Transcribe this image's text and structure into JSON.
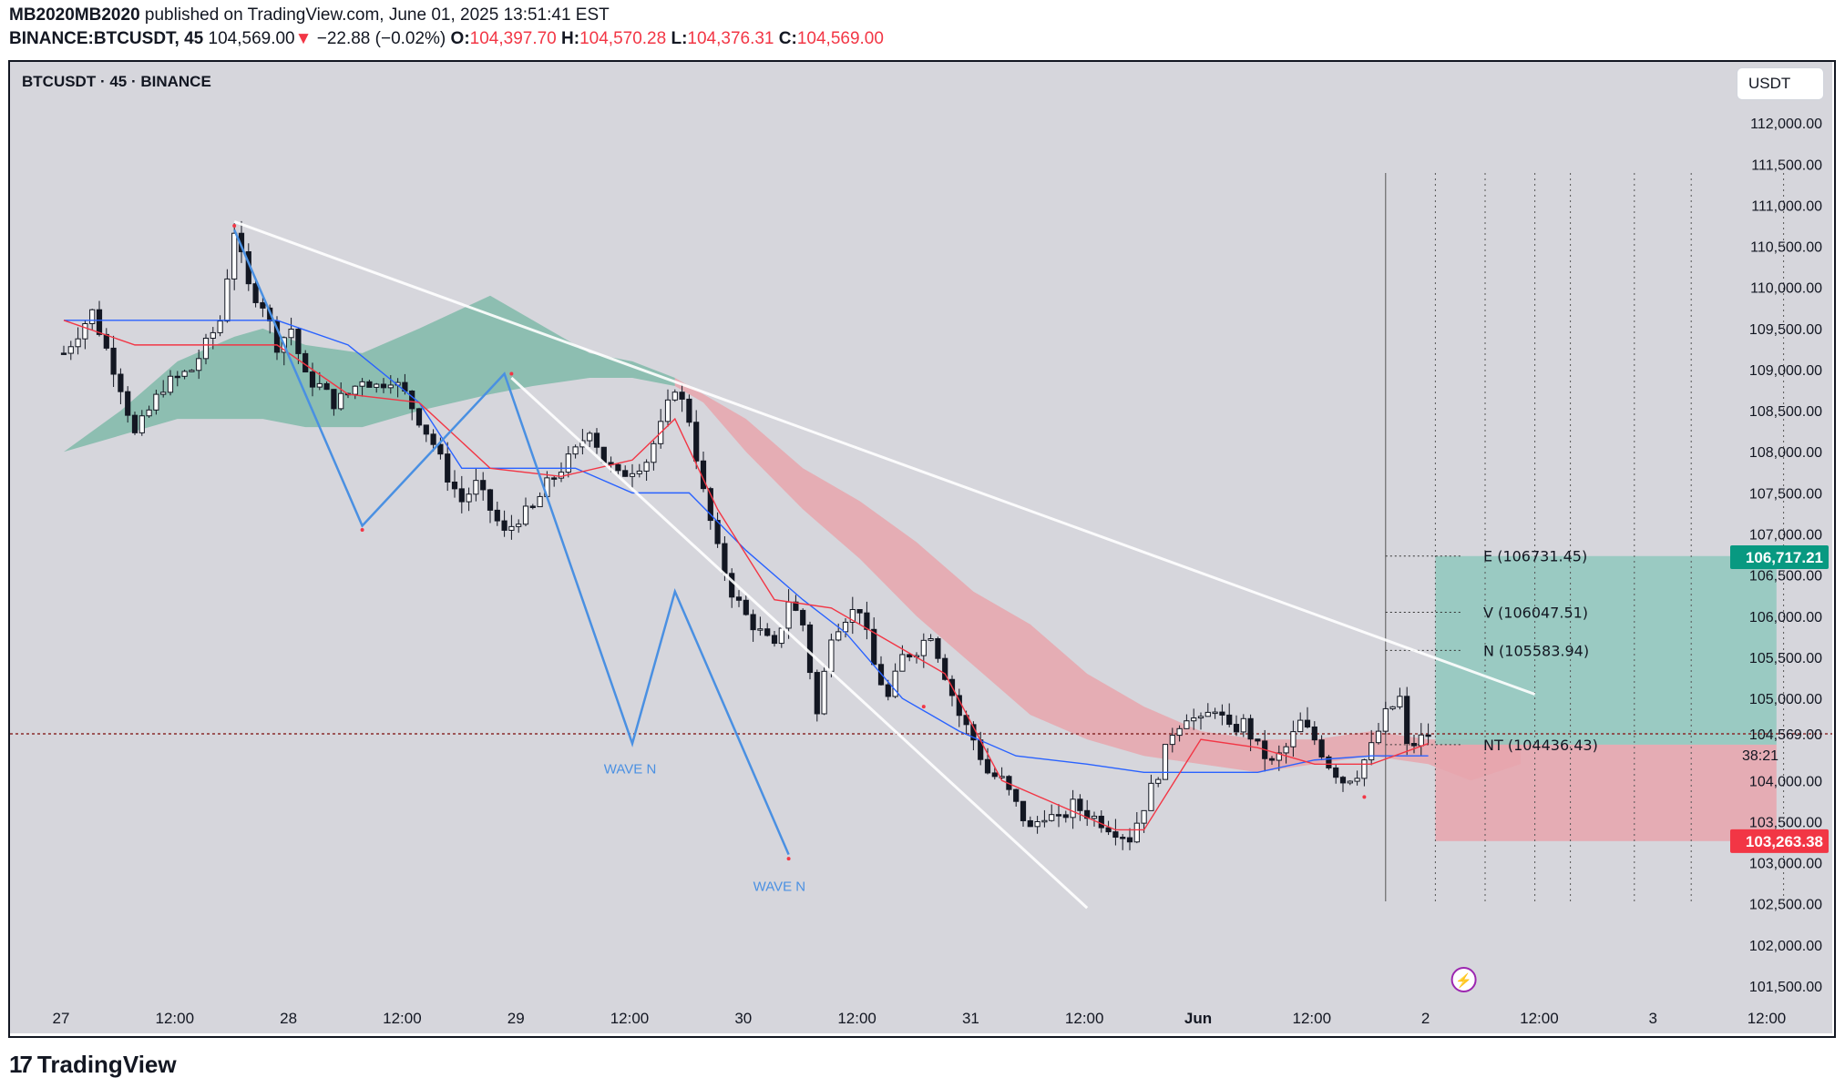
{
  "header": {
    "publisher": "MB2020MB2020",
    "published_text": "published on TradingView.com, June 01, 2025 13:51:41 EST",
    "symbol": "BINANCE:BTCUSDT, 45",
    "last": "104,569.00",
    "change_arrow": "▼",
    "change": "−22.88 (−0.02%)",
    "o_label": "O:",
    "o": "104,397.70",
    "h_label": "H:",
    "h": "104,570.28",
    "l_label": "L:",
    "l": "104,376.31",
    "c_label": "C:",
    "c": "104,569.00"
  },
  "ticker_label": "BTCUSDT · 45 · BINANCE",
  "currency_button": "USDT",
  "footer": {
    "brand": "TradingView",
    "logo_glyph": "17"
  },
  "colors": {
    "background": "#d6d6dc",
    "up": "#ffffff",
    "down": "#131722",
    "tenkan": "#f23645",
    "kijun": "#2962ff",
    "cloud_bull": "#7bb8a6",
    "cloud_bear": "#e9a3aa",
    "wave": "#4a90e2",
    "trendline": "#ffffff",
    "target_zone": "#8fc8bd",
    "stop_zone": "#e8a4ad",
    "price_line": "#8a2b2b",
    "badge_green": "#089981",
    "badge_red": "#f23645",
    "energy_icon": "#9c27b0"
  },
  "chart_data": {
    "type": "candlestick",
    "symbol": "BTCUSDT",
    "interval": "45",
    "exchange": "BINANCE",
    "ylim": [
      101500,
      112500
    ],
    "y_ticks": [
      "101,500.00",
      "102,000.00",
      "102,500.00",
      "103,000.00",
      "103,500.00",
      "104,000.00",
      "104,569.00",
      "105,000.00",
      "105,500.00",
      "106,000.00",
      "106,500.00",
      "107,000.00",
      "107,500.00",
      "108,000.00",
      "108,500.00",
      "109,000.00",
      "109,500.00",
      "110,000.00",
      "110,500.00",
      "111,000.00",
      "111,500.00",
      "112,000.00"
    ],
    "y_tick_values": [
      101500,
      102000,
      102500,
      103000,
      103500,
      104000,
      104569,
      105000,
      105500,
      106000,
      106500,
      107000,
      107500,
      108000,
      108500,
      109000,
      109500,
      110000,
      110500,
      111000,
      111500,
      112000
    ],
    "x_ticks": [
      "27",
      "12:00",
      "28",
      "12:00",
      "29",
      "12:00",
      "30",
      "12:00",
      "31",
      "12:00",
      "Jun",
      "12:00",
      "2",
      "12:00",
      "3",
      "12:00"
    ],
    "x_tick_bars": [
      0,
      16,
      32,
      48,
      64,
      80,
      96,
      112,
      128,
      144,
      160,
      176,
      192,
      208,
      224,
      240
    ],
    "current_price": 104569,
    "countdown": "38:21",
    "badges": [
      {
        "value": 106717.21,
        "text": "106,717.21",
        "color": "green"
      },
      {
        "value": 103263.38,
        "text": "103,263.38",
        "color": "red"
      }
    ],
    "target_levels": [
      {
        "name": "E",
        "value": 106731.45,
        "text": "E (106731.45)"
      },
      {
        "name": "V",
        "value": 106047.51,
        "text": "V (106047.51)"
      },
      {
        "name": "N",
        "value": 105583.94,
        "text": "N (105583.94)"
      },
      {
        "name": "NT",
        "value": 104436.43,
        "text": "NT (104436.43)"
      }
    ],
    "wave_labels": [
      "WAVE N",
      "WAVE N"
    ],
    "position": {
      "entry": 104436.43,
      "target": 106731.45,
      "stop": 103263.38,
      "start_bar": 193,
      "end_bar": 241
    },
    "first_time_label": "27",
    "bar_count_plotted": 193,
    "series": [
      {
        "name": "price",
        "keypoints": [
          [
            0,
            109200
          ],
          [
            4,
            109700
          ],
          [
            8,
            108800
          ],
          [
            10,
            108200
          ],
          [
            14,
            108800
          ],
          [
            18,
            109000
          ],
          [
            22,
            109600
          ],
          [
            24,
            110700
          ],
          [
            26,
            110000
          ],
          [
            28,
            109800
          ],
          [
            30,
            109300
          ],
          [
            32,
            109500
          ],
          [
            34,
            108900
          ],
          [
            36,
            108800
          ],
          [
            38,
            108600
          ],
          [
            40,
            108700
          ],
          [
            42,
            108900
          ],
          [
            44,
            108800
          ],
          [
            46,
            108900
          ],
          [
            48,
            108700
          ],
          [
            50,
            108400
          ],
          [
            52,
            108100
          ],
          [
            54,
            107700
          ],
          [
            56,
            107400
          ],
          [
            58,
            107600
          ],
          [
            60,
            107300
          ],
          [
            62,
            107000
          ],
          [
            64,
            107200
          ],
          [
            66,
            107300
          ],
          [
            68,
            107600
          ],
          [
            70,
            107800
          ],
          [
            72,
            108000
          ],
          [
            74,
            108300
          ],
          [
            76,
            107900
          ],
          [
            78,
            107700
          ],
          [
            80,
            107800
          ],
          [
            82,
            107900
          ],
          [
            84,
            108300
          ],
          [
            86,
            108800
          ],
          [
            88,
            108400
          ],
          [
            90,
            107500
          ],
          [
            92,
            106800
          ],
          [
            94,
            106300
          ],
          [
            96,
            106000
          ],
          [
            98,
            105800
          ],
          [
            100,
            105600
          ],
          [
            102,
            106200
          ],
          [
            104,
            105900
          ],
          [
            106,
            104800
          ],
          [
            108,
            105800
          ],
          [
            110,
            106000
          ],
          [
            112,
            106100
          ],
          [
            114,
            105400
          ],
          [
            116,
            105000
          ],
          [
            118,
            105500
          ],
          [
            120,
            105600
          ],
          [
            122,
            105800
          ],
          [
            124,
            105300
          ],
          [
            126,
            104800
          ],
          [
            128,
            104500
          ],
          [
            130,
            104100
          ],
          [
            132,
            104000
          ],
          [
            134,
            103700
          ],
          [
            136,
            103400
          ],
          [
            138,
            103600
          ],
          [
            140,
            103500
          ],
          [
            142,
            103700
          ],
          [
            144,
            103600
          ],
          [
            146,
            103500
          ],
          [
            148,
            103400
          ],
          [
            150,
            103300
          ],
          [
            152,
            103700
          ],
          [
            154,
            104100
          ],
          [
            156,
            104600
          ],
          [
            158,
            104800
          ],
          [
            160,
            104700
          ],
          [
            162,
            104900
          ],
          [
            164,
            104600
          ],
          [
            166,
            104700
          ],
          [
            168,
            104400
          ],
          [
            170,
            104200
          ],
          [
            172,
            104400
          ],
          [
            174,
            104700
          ],
          [
            176,
            104500
          ],
          [
            178,
            104200
          ],
          [
            180,
            104000
          ],
          [
            182,
            104100
          ],
          [
            184,
            104400
          ],
          [
            186,
            104800
          ],
          [
            188,
            105000
          ],
          [
            189,
            104400
          ],
          [
            190,
            104450
          ],
          [
            192,
            104569
          ]
        ]
      },
      {
        "name": "tenkan",
        "points": [
          [
            0,
            109600
          ],
          [
            10,
            109300
          ],
          [
            20,
            109300
          ],
          [
            30,
            109300
          ],
          [
            40,
            108700
          ],
          [
            50,
            108600
          ],
          [
            60,
            107800
          ],
          [
            70,
            107700
          ],
          [
            80,
            107900
          ],
          [
            86,
            108400
          ],
          [
            92,
            107300
          ],
          [
            100,
            106200
          ],
          [
            108,
            106100
          ],
          [
            116,
            105700
          ],
          [
            124,
            105300
          ],
          [
            132,
            104000
          ],
          [
            140,
            103700
          ],
          [
            148,
            103400
          ],
          [
            152,
            103400
          ],
          [
            160,
            104500
          ],
          [
            168,
            104400
          ],
          [
            176,
            104200
          ],
          [
            184,
            104200
          ],
          [
            192,
            104450
          ]
        ]
      },
      {
        "name": "kijun",
        "points": [
          [
            0,
            109600
          ],
          [
            20,
            109600
          ],
          [
            30,
            109600
          ],
          [
            40,
            109300
          ],
          [
            50,
            108600
          ],
          [
            56,
            107800
          ],
          [
            64,
            107800
          ],
          [
            72,
            107800
          ],
          [
            80,
            107500
          ],
          [
            88,
            107500
          ],
          [
            96,
            106800
          ],
          [
            104,
            106200
          ],
          [
            110,
            105800
          ],
          [
            118,
            105000
          ],
          [
            126,
            104600
          ],
          [
            134,
            104300
          ],
          [
            144,
            104200
          ],
          [
            152,
            104100
          ],
          [
            160,
            104100
          ],
          [
            168,
            104100
          ],
          [
            176,
            104250
          ],
          [
            184,
            104300
          ],
          [
            192,
            104300
          ]
        ]
      },
      {
        "name": "cloud_upper",
        "points": [
          [
            0,
            108000
          ],
          [
            8,
            108500
          ],
          [
            16,
            109100
          ],
          [
            24,
            109400
          ],
          [
            28,
            109500
          ],
          [
            34,
            109300
          ],
          [
            42,
            109200
          ],
          [
            50,
            109500
          ],
          [
            60,
            109900
          ],
          [
            66,
            109600
          ],
          [
            74,
            109200
          ],
          [
            80,
            109100
          ],
          [
            86,
            108900
          ],
          [
            90,
            108700
          ],
          [
            96,
            108400
          ],
          [
            104,
            107800
          ],
          [
            112,
            107400
          ],
          [
            120,
            106900
          ],
          [
            128,
            106300
          ],
          [
            136,
            105900
          ],
          [
            144,
            105300
          ],
          [
            152,
            104900
          ],
          [
            160,
            104600
          ],
          [
            168,
            104500
          ],
          [
            176,
            104500
          ],
          [
            184,
            104600
          ],
          [
            192,
            104500
          ],
          [
            198,
            104500
          ],
          [
            205,
            104500
          ]
        ]
      },
      {
        "name": "cloud_lower",
        "points": [
          [
            0,
            108000
          ],
          [
            8,
            108200
          ],
          [
            16,
            108400
          ],
          [
            24,
            108400
          ],
          [
            28,
            108400
          ],
          [
            34,
            108300
          ],
          [
            42,
            108300
          ],
          [
            50,
            108500
          ],
          [
            60,
            108700
          ],
          [
            66,
            108800
          ],
          [
            74,
            108900
          ],
          [
            80,
            108900
          ],
          [
            86,
            108800
          ],
          [
            90,
            108600
          ],
          [
            96,
            108000
          ],
          [
            104,
            107300
          ],
          [
            112,
            106700
          ],
          [
            120,
            106000
          ],
          [
            128,
            105400
          ],
          [
            136,
            104800
          ],
          [
            144,
            104500
          ],
          [
            152,
            104300
          ],
          [
            160,
            104200
          ],
          [
            168,
            104100
          ],
          [
            176,
            104200
          ],
          [
            184,
            104300
          ],
          [
            192,
            104200
          ],
          [
            198,
            104000
          ],
          [
            205,
            104200
          ]
        ]
      }
    ]
  }
}
